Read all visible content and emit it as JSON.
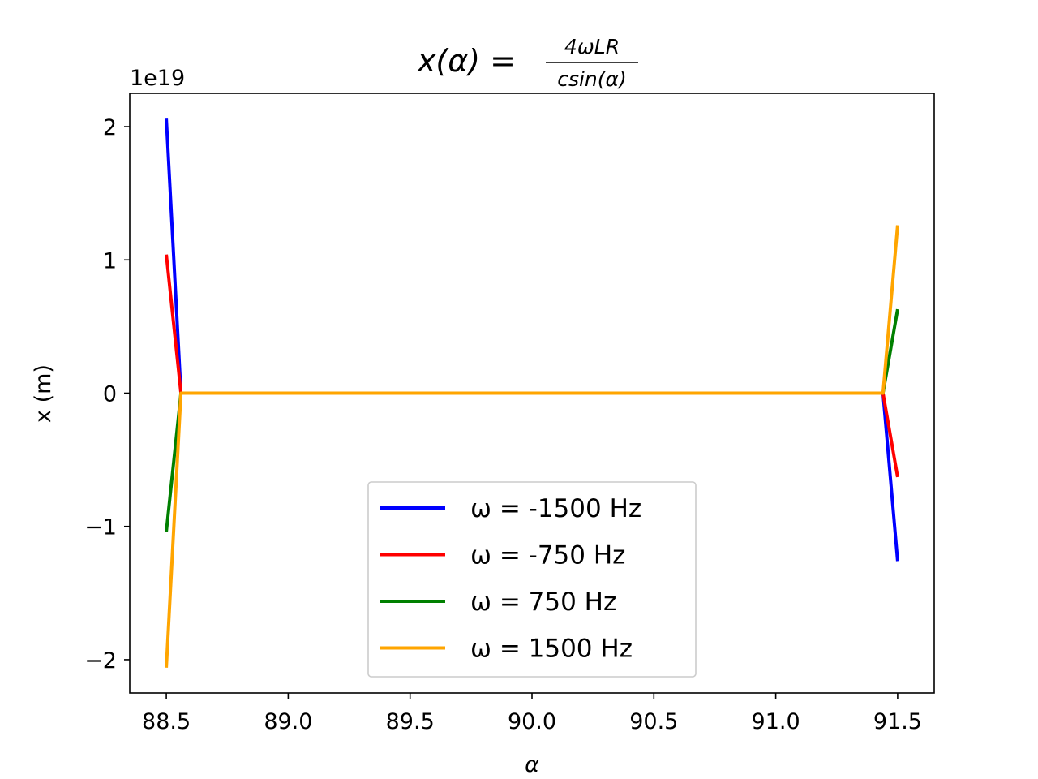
{
  "chart_data": {
    "type": "line",
    "title": {
      "lhs": "x(α) =",
      "numerator": "4ωLR",
      "denominator": "csin(α)"
    },
    "xlabel": "α",
    "ylabel": "x (m)",
    "y_offset_label": "1e19",
    "xlim": [
      88.35,
      91.65
    ],
    "ylim": [
      -2.25,
      2.25
    ],
    "y_scale_factor": "1e19",
    "x_ticks": [
      88.5,
      89.0,
      89.5,
      90.0,
      90.5,
      91.0,
      91.5
    ],
    "x_tick_labels": [
      "88.5",
      "89.0",
      "89.5",
      "90.0",
      "90.5",
      "91.0",
      "91.5"
    ],
    "y_ticks": [
      -2,
      -1,
      0,
      1,
      2
    ],
    "y_tick_labels": [
      "−2",
      "−1",
      "0",
      "1",
      "2"
    ],
    "grid": false,
    "legend_position": "lower-center",
    "series": [
      {
        "name": "ω = -1500 Hz",
        "color": "#0000ff",
        "points": [
          [
            88.5,
            2.06
          ],
          [
            88.56,
            0.0
          ],
          [
            91.44,
            0.0
          ],
          [
            91.5,
            -1.26
          ]
        ]
      },
      {
        "name": "ω = -750 Hz",
        "color": "#ff0000",
        "points": [
          [
            88.5,
            1.04
          ],
          [
            88.56,
            0.0
          ],
          [
            91.44,
            0.0
          ],
          [
            91.5,
            -0.63
          ]
        ]
      },
      {
        "name": "ω = 750 Hz",
        "color": "#008000",
        "points": [
          [
            88.5,
            -1.04
          ],
          [
            88.56,
            0.0
          ],
          [
            91.44,
            0.0
          ],
          [
            91.5,
            0.63
          ]
        ]
      },
      {
        "name": "ω = 1500 Hz",
        "color": "#ffa500",
        "points": [
          [
            88.5,
            -2.06
          ],
          [
            88.56,
            0.0
          ],
          [
            91.44,
            0.0
          ],
          [
            91.5,
            1.26
          ]
        ]
      }
    ]
  }
}
